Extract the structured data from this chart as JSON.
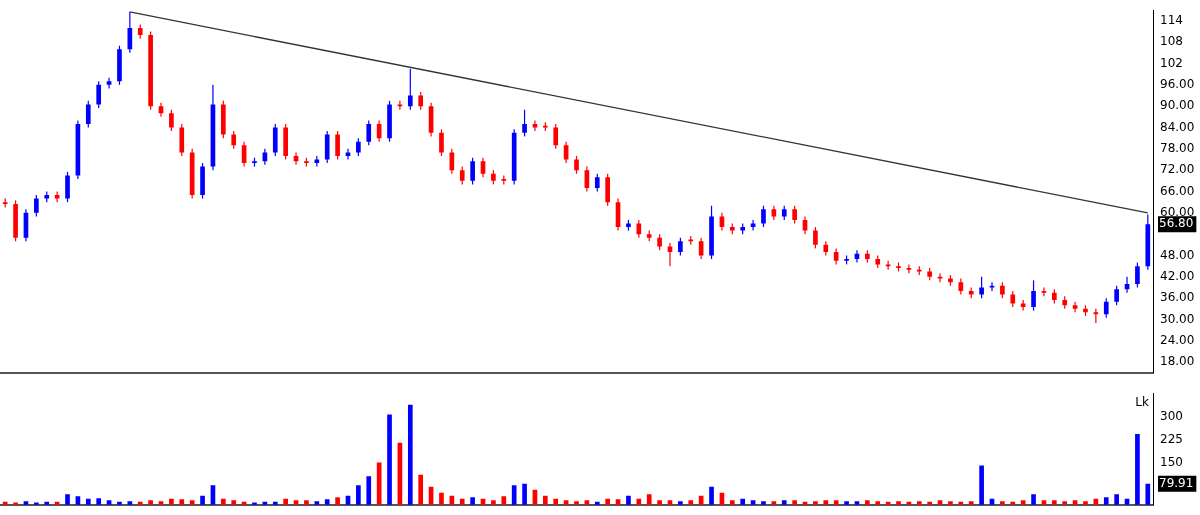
{
  "chart_data": [
    {
      "type": "candlestick",
      "categories": [
        null,
        null,
        null,
        null,
        null,
        null,
        null,
        null,
        null,
        null,
        null,
        null,
        null,
        null,
        null,
        null,
        null,
        null,
        null,
        null,
        null,
        null,
        null,
        null,
        null,
        null,
        null,
        null,
        null,
        null,
        null,
        null,
        null,
        null,
        null,
        null,
        null,
        null,
        null,
        null,
        null,
        null,
        null,
        null,
        null,
        null,
        null,
        null,
        null,
        null,
        null,
        null,
        null,
        null,
        null,
        null,
        null,
        null,
        null,
        null,
        null,
        null,
        null,
        null,
        null,
        null,
        null,
        null,
        null,
        null,
        null,
        null,
        null,
        null,
        null,
        null,
        null,
        null,
        null,
        null,
        null,
        null,
        null,
        null,
        null,
        null,
        null,
        null,
        null,
        null,
        null,
        null,
        null,
        null,
        null,
        null,
        null,
        null,
        null,
        null,
        null,
        null,
        null,
        null,
        null,
        null,
        null,
        null,
        null,
        null,
        null
      ],
      "ohlc": [
        [
          63,
          64,
          61.5,
          62.5
        ],
        [
          62.5,
          63.5,
          52,
          53
        ],
        [
          53,
          61,
          52,
          60
        ],
        [
          60,
          65,
          59,
          64
        ],
        [
          64,
          66,
          63,
          65
        ],
        [
          65,
          66,
          63,
          64
        ],
        [
          64,
          71.5,
          63,
          70.5
        ],
        [
          70.5,
          86,
          69.5,
          85
        ],
        [
          85,
          91.5,
          84,
          90.5
        ],
        [
          90.5,
          97,
          89.5,
          96
        ],
        [
          96,
          98,
          95,
          97
        ],
        [
          97,
          107,
          96,
          106
        ],
        [
          106,
          116.5,
          105,
          112
        ],
        [
          112,
          113,
          109,
          110
        ],
        [
          110,
          111,
          89,
          90
        ],
        [
          90,
          91,
          87,
          88
        ],
        [
          88,
          89,
          83,
          84
        ],
        [
          84,
          85,
          76,
          77
        ],
        [
          77,
          78,
          64,
          65
        ],
        [
          65,
          74,
          64,
          73
        ],
        [
          73,
          96,
          72,
          90.5
        ],
        [
          90.5,
          91.5,
          81,
          82
        ],
        [
          82,
          83,
          78,
          79
        ],
        [
          79,
          80,
          73,
          74
        ],
        [
          74,
          75.5,
          73,
          74.5
        ],
        [
          74.5,
          78,
          73.5,
          77
        ],
        [
          77,
          85,
          76,
          84
        ],
        [
          84,
          85,
          75,
          76
        ],
        [
          76,
          77,
          73.5,
          74.5
        ],
        [
          74.5,
          75.5,
          73,
          74
        ],
        [
          74,
          76,
          73,
          75
        ],
        [
          75,
          83,
          74,
          82
        ],
        [
          82,
          83,
          75,
          76
        ],
        [
          76,
          78,
          75,
          77
        ],
        [
          77,
          81,
          76,
          80
        ],
        [
          80,
          86,
          79,
          85
        ],
        [
          85,
          86,
          80,
          81
        ],
        [
          81,
          91.5,
          80,
          90.5
        ],
        [
          90.5,
          91.5,
          89,
          90
        ],
        [
          90,
          100.5,
          89,
          93
        ],
        [
          93,
          94,
          89,
          90
        ],
        [
          90,
          91,
          81.5,
          82.5
        ],
        [
          82.5,
          83.5,
          76,
          77
        ],
        [
          77,
          78,
          71,
          72
        ],
        [
          72,
          73,
          68,
          69
        ],
        [
          69,
          75.5,
          68,
          74.5
        ],
        [
          74.5,
          75.5,
          70,
          71
        ],
        [
          71,
          72,
          68,
          69
        ],
        [
          69.5,
          70.5,
          68,
          69
        ],
        [
          69,
          83.5,
          68,
          82.5
        ],
        [
          82.5,
          89,
          81.5,
          85
        ],
        [
          85,
          86,
          83,
          84
        ],
        [
          84.5,
          85.5,
          83,
          84
        ],
        [
          84,
          85,
          78,
          79
        ],
        [
          79,
          80,
          74,
          75
        ],
        [
          75,
          76,
          71,
          72
        ],
        [
          72,
          73,
          66,
          67
        ],
        [
          67,
          71,
          66,
          70
        ],
        [
          70,
          71,
          62,
          63
        ],
        [
          63,
          64,
          55,
          56
        ],
        [
          56,
          58,
          55,
          57
        ],
        [
          57,
          58,
          53,
          54
        ],
        [
          54,
          55,
          52,
          53
        ],
        [
          53,
          54,
          49.5,
          50.5
        ],
        [
          50.5,
          51.5,
          45,
          49
        ],
        [
          49,
          53,
          48,
          52
        ],
        [
          52.5,
          53.5,
          51,
          52
        ],
        [
          52,
          53,
          47,
          48
        ],
        [
          48,
          62,
          47,
          59
        ],
        [
          59,
          60,
          55,
          56
        ],
        [
          56,
          57,
          54,
          55
        ],
        [
          55,
          57,
          54,
          56
        ],
        [
          56,
          58,
          55,
          57
        ],
        [
          57,
          62,
          56,
          61
        ],
        [
          61,
          62,
          58,
          59
        ],
        [
          59,
          62,
          58,
          61
        ],
        [
          61,
          62,
          57,
          58
        ],
        [
          58,
          59,
          54,
          55
        ],
        [
          55,
          56,
          50,
          51
        ],
        [
          51,
          52,
          48,
          49
        ],
        [
          49,
          50,
          45.5,
          46.5
        ],
        [
          46.5,
          48,
          45.5,
          47
        ],
        [
          47,
          49.5,
          46,
          48.5
        ],
        [
          48.5,
          49.5,
          46,
          47
        ],
        [
          47,
          48,
          44.5,
          45.5
        ],
        [
          45.5,
          46.5,
          44,
          45
        ],
        [
          45,
          46,
          43.5,
          44.5
        ],
        [
          44.5,
          45.5,
          43,
          44
        ],
        [
          44,
          45,
          42.5,
          43.5
        ],
        [
          43.5,
          44.5,
          41,
          42
        ],
        [
          42,
          43,
          40.5,
          41.5
        ],
        [
          41.5,
          42.5,
          39.5,
          40.5
        ],
        [
          40.5,
          41.5,
          37,
          38
        ],
        [
          38,
          39,
          36,
          37
        ],
        [
          37,
          42,
          36,
          39
        ],
        [
          39,
          40.5,
          38,
          39.5
        ],
        [
          39.5,
          40.5,
          36,
          37
        ],
        [
          37,
          38,
          33.5,
          34.5
        ],
        [
          34.5,
          35.5,
          32.5,
          33.5
        ],
        [
          33.5,
          41,
          32.5,
          38
        ],
        [
          38,
          39,
          36.5,
          37.5
        ],
        [
          37.5,
          38.5,
          34.5,
          35.5
        ],
        [
          35.5,
          36.5,
          33,
          34
        ],
        [
          34,
          35,
          32,
          33
        ],
        [
          33,
          34,
          31,
          32
        ],
        [
          32,
          33,
          29,
          31.5
        ],
        [
          31.5,
          36,
          30.5,
          35
        ],
        [
          35,
          39.5,
          34,
          38.5
        ],
        [
          38.5,
          42,
          37.5,
          40
        ],
        [
          40,
          46,
          39,
          45
        ],
        [
          45,
          59.5,
          44,
          56.8
        ]
      ],
      "colors": [
        "#ff0000",
        "#ff0000",
        "#0000ff",
        "#0000ff",
        "#0000ff",
        "#ff0000",
        "#0000ff",
        "#0000ff",
        "#0000ff",
        "#0000ff",
        "#0000ff",
        "#0000ff",
        "#0000ff",
        "#ff0000",
        "#ff0000",
        "#ff0000",
        "#ff0000",
        "#ff0000",
        "#ff0000",
        "#0000ff",
        "#0000ff",
        "#ff0000",
        "#ff0000",
        "#ff0000",
        "#0000ff",
        "#0000ff",
        "#0000ff",
        "#ff0000",
        "#ff0000",
        "#ff0000",
        "#0000ff",
        "#0000ff",
        "#ff0000",
        "#0000ff",
        "#0000ff",
        "#0000ff",
        "#ff0000",
        "#0000ff",
        "#ff0000",
        "#0000ff",
        "#ff0000",
        "#ff0000",
        "#ff0000",
        "#ff0000",
        "#ff0000",
        "#0000ff",
        "#ff0000",
        "#ff0000",
        "#ff0000",
        "#0000ff",
        "#0000ff",
        "#ff0000",
        "#ff0000",
        "#ff0000",
        "#ff0000",
        "#ff0000",
        "#ff0000",
        "#0000ff",
        "#ff0000",
        "#ff0000",
        "#0000ff",
        "#ff0000",
        "#ff0000",
        "#ff0000",
        "#ff0000",
        "#0000ff",
        "#ff0000",
        "#ff0000",
        "#0000ff",
        "#ff0000",
        "#ff0000",
        "#0000ff",
        "#0000ff",
        "#0000ff",
        "#ff0000",
        "#0000ff",
        "#ff0000",
        "#ff0000",
        "#ff0000",
        "#ff0000",
        "#ff0000",
        "#0000ff",
        "#0000ff",
        "#ff0000",
        "#ff0000",
        "#ff0000",
        "#ff0000",
        "#ff0000",
        "#ff0000",
        "#ff0000",
        "#ff0000",
        "#ff0000",
        "#ff0000",
        "#ff0000",
        "#0000ff",
        "#0000ff",
        "#ff0000",
        "#ff0000",
        "#ff0000",
        "#0000ff",
        "#ff0000",
        "#ff0000",
        "#ff0000",
        "#ff0000",
        "#ff0000",
        "#ff0000",
        "#0000ff",
        "#0000ff",
        "#0000ff",
        "#0000ff",
        "#0000ff"
      ],
      "series": [
        {
          "type": "line",
          "color": "#333333",
          "values": [
            null,
            null,
            null,
            null,
            null,
            null,
            null,
            null,
            null,
            null,
            null,
            null,
            116.5,
            null,
            null,
            null,
            null,
            null,
            null,
            null,
            null,
            null,
            null,
            null,
            null,
            null,
            null,
            null,
            null,
            null,
            null,
            null,
            null,
            null,
            null,
            null,
            null,
            null,
            null,
            null,
            null,
            null,
            null,
            null,
            null,
            null,
            null,
            null,
            null,
            null,
            null,
            null,
            null,
            null,
            null,
            null,
            null,
            null,
            null,
            null,
            null,
            null,
            null,
            null,
            null,
            null,
            null,
            null,
            null,
            null,
            null,
            null,
            null,
            null,
            null,
            null,
            null,
            null,
            null,
            null,
            null,
            null,
            null,
            null,
            null,
            null,
            null,
            null,
            null,
            null,
            null,
            null,
            null,
            null,
            null,
            null,
            null,
            null,
            null,
            null,
            null,
            null,
            null,
            null,
            null,
            null,
            null,
            null,
            null,
            null,
            60
          ]
        }
      ],
      "ylim": [
        15,
        117
      ],
      "yticks": [
        114,
        108,
        102,
        {
          "value": 96,
          "label": "96.00"
        },
        {
          "value": 90,
          "label": "90.00"
        },
        {
          "value": 84,
          "label": "84.00"
        },
        {
          "value": 78,
          "label": "78.00"
        },
        {
          "value": 72,
          "label": "72.00"
        },
        {
          "value": 66,
          "label": "66.00"
        },
        {
          "value": 60,
          "label": "60.00"
        },
        {
          "value": 48,
          "label": "48.00"
        },
        {
          "value": 42,
          "label": "42.00"
        },
        {
          "value": 36,
          "label": "36.00"
        },
        {
          "value": 30,
          "label": "30.00"
        },
        {
          "value": 24,
          "label": "24.00"
        },
        {
          "value": 18,
          "label": "18.00"
        }
      ],
      "tick_labels": "y",
      "annotations": [
        "56.80"
      ],
      "legend": false
    },
    {
      "type": "bar",
      "categories": [
        null,
        null,
        null,
        null,
        null,
        null,
        null,
        null,
        null,
        null,
        null,
        null,
        null,
        null,
        null,
        null,
        null,
        null,
        null,
        null,
        null,
        null,
        null,
        null,
        null,
        null,
        null,
        null,
        null,
        null,
        null,
        null,
        null,
        null,
        null,
        null,
        null,
        null,
        null,
        null,
        null,
        null,
        null,
        null,
        null,
        null,
        null,
        null,
        null,
        null,
        null,
        null,
        null,
        null,
        null,
        null,
        null,
        null,
        null,
        null,
        null,
        null,
        null,
        null,
        null,
        null,
        null,
        null,
        null,
        null,
        null,
        null,
        null,
        null,
        null,
        null,
        null,
        null,
        null,
        null,
        null,
        null,
        null,
        null,
        null,
        null,
        null,
        null,
        null,
        null,
        null,
        null,
        null,
        null,
        null,
        null,
        null,
        null,
        null,
        null,
        null,
        null,
        null,
        null,
        null,
        null,
        null,
        null,
        null,
        null,
        null
      ],
      "values": [
        20,
        18,
        22,
        18,
        20,
        20,
        45,
        38,
        30,
        32,
        25,
        20,
        22,
        20,
        25,
        22,
        30,
        28,
        25,
        40,
        75,
        30,
        25,
        20,
        18,
        20,
        20,
        30,
        25,
        25,
        22,
        28,
        35,
        40,
        75,
        105,
        150,
        309,
        216,
        342,
        110,
        70,
        50,
        40,
        30,
        35,
        30,
        25,
        38,
        75,
        80,
        60,
        40,
        30,
        25,
        22,
        25,
        20,
        30,
        28,
        40,
        30,
        45,
        25,
        25,
        22,
        25,
        40,
        70,
        50,
        25,
        30,
        25,
        22,
        22,
        25,
        25,
        20,
        22,
        25,
        25,
        22,
        22,
        25,
        22,
        20,
        22,
        20,
        22,
        20,
        25,
        22,
        20,
        22,
        140,
        30,
        22,
        20,
        25,
        45,
        25,
        25,
        22,
        25,
        22,
        30,
        35,
        45,
        30,
        245,
        79.91
      ],
      "colors": [
        "#ff0000",
        "#ff0000",
        "#0000ff",
        "#0000ff",
        "#0000ff",
        "#ff0000",
        "#0000ff",
        "#0000ff",
        "#0000ff",
        "#0000ff",
        "#0000ff",
        "#0000ff",
        "#0000ff",
        "#ff0000",
        "#ff0000",
        "#ff0000",
        "#ff0000",
        "#ff0000",
        "#ff0000",
        "#0000ff",
        "#0000ff",
        "#ff0000",
        "#ff0000",
        "#ff0000",
        "#0000ff",
        "#0000ff",
        "#0000ff",
        "#ff0000",
        "#ff0000",
        "#ff0000",
        "#0000ff",
        "#0000ff",
        "#ff0000",
        "#0000ff",
        "#0000ff",
        "#0000ff",
        "#ff0000",
        "#0000ff",
        "#ff0000",
        "#0000ff",
        "#ff0000",
        "#ff0000",
        "#ff0000",
        "#ff0000",
        "#ff0000",
        "#0000ff",
        "#ff0000",
        "#ff0000",
        "#ff0000",
        "#0000ff",
        "#0000ff",
        "#ff0000",
        "#ff0000",
        "#ff0000",
        "#ff0000",
        "#ff0000",
        "#ff0000",
        "#0000ff",
        "#ff0000",
        "#ff0000",
        "#0000ff",
        "#ff0000",
        "#ff0000",
        "#ff0000",
        "#ff0000",
        "#0000ff",
        "#ff0000",
        "#ff0000",
        "#0000ff",
        "#ff0000",
        "#ff0000",
        "#0000ff",
        "#0000ff",
        "#0000ff",
        "#ff0000",
        "#0000ff",
        "#ff0000",
        "#ff0000",
        "#ff0000",
        "#ff0000",
        "#ff0000",
        "#0000ff",
        "#0000ff",
        "#ff0000",
        "#ff0000",
        "#ff0000",
        "#ff0000",
        "#ff0000",
        "#ff0000",
        "#ff0000",
        "#ff0000",
        "#ff0000",
        "#ff0000",
        "#ff0000",
        "#0000ff",
        "#0000ff",
        "#ff0000",
        "#ff0000",
        "#ff0000",
        "#0000ff",
        "#ff0000",
        "#ff0000",
        "#ff0000",
        "#ff0000",
        "#ff0000",
        "#ff0000",
        "#0000ff",
        "#0000ff",
        "#0000ff",
        "#0000ff",
        "#0000ff"
      ],
      "ylim": [
        10,
        380
      ],
      "yticks": [
        150,
        225,
        300
      ],
      "ylabel": "Lk",
      "tick_labels": "y",
      "annotations": [
        "79.91"
      ],
      "legend": false
    }
  ]
}
